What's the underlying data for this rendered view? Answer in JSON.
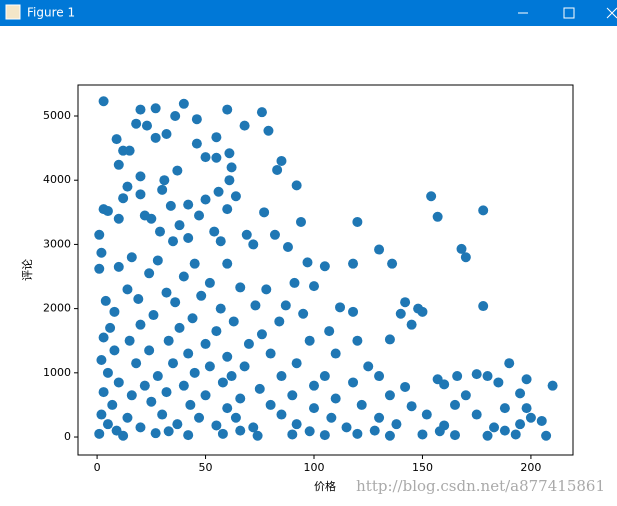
{
  "window": {
    "title": "Figure 1"
  },
  "chart_data": {
    "type": "scatter",
    "xlabel": "价格",
    "ylabel": "评论",
    "color": "#1f77b4",
    "xlim": [
      -8.8,
      219.4
    ],
    "ylim": [
      -280,
      5483
    ],
    "xticks": [
      0,
      50,
      100,
      150,
      200
    ],
    "yticks": [
      0,
      1000,
      2000,
      3000,
      4000,
      5000
    ],
    "grid": false,
    "x": [
      3,
      20,
      27,
      40,
      60,
      76,
      36,
      46,
      18,
      23,
      55,
      68,
      79,
      27,
      32,
      9,
      46,
      12,
      15,
      50,
      61,
      55,
      85,
      10,
      62,
      83,
      37,
      20,
      31,
      61,
      14,
      92,
      30,
      56,
      64,
      20,
      12,
      50,
      42,
      34,
      60,
      77,
      3,
      5,
      10,
      22,
      25,
      47,
      94,
      120,
      38,
      54,
      69,
      82,
      29,
      1,
      35,
      42,
      57,
      72,
      130,
      154,
      157,
      178,
      168,
      170,
      2,
      16,
      28,
      45,
      60,
      88,
      97,
      105,
      118,
      136,
      10,
      24,
      40,
      52,
      66,
      91,
      1,
      14,
      32,
      48,
      78,
      100,
      4,
      19,
      36,
      57,
      73,
      87,
      112,
      142,
      148,
      178,
      8,
      26,
      44,
      63,
      84,
      95,
      118,
      140,
      150,
      6,
      20,
      38,
      55,
      76,
      107,
      145,
      3,
      15,
      33,
      50,
      70,
      98,
      120,
      135,
      8,
      24,
      42,
      60,
      80,
      110,
      2,
      18,
      35,
      52,
      68,
      92,
      125,
      190,
      5,
      28,
      45,
      62,
      85,
      105,
      130,
      157,
      166,
      175,
      180,
      198,
      10,
      22,
      40,
      58,
      75,
      100,
      118,
      142,
      160,
      185,
      210,
      3,
      16,
      32,
      50,
      66,
      90,
      110,
      135,
      170,
      195,
      7,
      25,
      43,
      60,
      80,
      100,
      122,
      145,
      165,
      188,
      198,
      2,
      14,
      30,
      47,
      64,
      85,
      108,
      130,
      152,
      175,
      200,
      205,
      5,
      20,
      37,
      55,
      72,
      92,
      115,
      138,
      160,
      183,
      195,
      1,
      12,
      27,
      42,
      58,
      74,
      90,
      105,
      120,
      135,
      150,
      165,
      180,
      193,
      207,
      9,
      33,
      66,
      98,
      128,
      158,
      188
    ],
    "values": [
      5230,
      5100,
      5120,
      5190,
      5100,
      5060,
      5000,
      4950,
      4880,
      4850,
      4670,
      4850,
      4770,
      4660,
      4720,
      4640,
      4570,
      4460,
      4460,
      4360,
      4420,
      4350,
      4300,
      4240,
      4200,
      4160,
      4150,
      4060,
      4000,
      4000,
      3900,
      3920,
      3850,
      3820,
      3750,
      3780,
      3720,
      3700,
      3620,
      3600,
      3550,
      3500,
      3550,
      3520,
      3400,
      3450,
      3400,
      3450,
      3350,
      3350,
      3300,
      3200,
      3150,
      3150,
      3200,
      3150,
      3050,
      3100,
      3050,
      3000,
      2920,
      3750,
      3430,
      3530,
      2930,
      2800,
      2870,
      2800,
      2750,
      2700,
      2700,
      2960,
      2720,
      2660,
      2700,
      2700,
      2650,
      2550,
      2500,
      2400,
      2330,
      2400,
      2620,
      2300,
      2250,
      2200,
      2300,
      2350,
      2120,
      2150,
      2100,
      2000,
      2050,
      2050,
      2020,
      2100,
      2000,
      2040,
      1950,
      1900,
      1850,
      1800,
      1800,
      1920,
      1950,
      1920,
      1950,
      1700,
      1750,
      1700,
      1650,
      1600,
      1650,
      1750,
      1550,
      1500,
      1500,
      1450,
      1450,
      1500,
      1500,
      1520,
      1350,
      1350,
      1300,
      1250,
      1300,
      1300,
      1200,
      1150,
      1150,
      1100,
      1100,
      1150,
      1100,
      1150,
      1000,
      950,
      1000,
      950,
      950,
      950,
      950,
      900,
      950,
      980,
      950,
      900,
      850,
      800,
      800,
      850,
      750,
      800,
      850,
      780,
      820,
      850,
      800,
      700,
      650,
      700,
      650,
      600,
      650,
      600,
      650,
      650,
      680,
      500,
      550,
      500,
      450,
      500,
      450,
      500,
      480,
      500,
      450,
      450,
      350,
      300,
      350,
      300,
      300,
      350,
      300,
      300,
      350,
      350,
      300,
      250,
      200,
      150,
      200,
      180,
      150,
      200,
      150,
      200,
      180,
      150,
      200,
      50,
      20,
      60,
      30,
      50,
      20,
      40,
      30,
      50,
      20,
      40,
      30,
      20,
      40,
      20,
      100,
      90,
      100,
      90,
      100,
      90,
      100
    ]
  },
  "watermark": "http://blog.csdn.net/a877415861"
}
